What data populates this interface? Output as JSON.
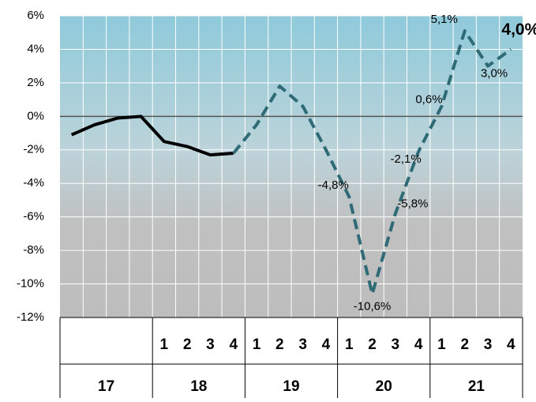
{
  "chart_data": {
    "type": "line",
    "categories": [
      null,
      null,
      null,
      null,
      "1",
      "2",
      "3",
      "4",
      "1",
      "2",
      "3",
      "4",
      "1",
      "2",
      "3",
      "4",
      "1",
      "2",
      "3",
      "4"
    ],
    "years": [
      "17",
      "18",
      "19",
      "20",
      "21"
    ],
    "series": [
      {
        "color": "#000000",
        "dashed": false,
        "values": [
          -1.1,
          -0.5,
          -0.1,
          0.0,
          -1.5,
          -1.8,
          -2.3,
          -2.2,
          null,
          null,
          null,
          null,
          null,
          null,
          null,
          null,
          null,
          null,
          null,
          null
        ]
      },
      {
        "color": "#2e6b76",
        "dashed": true,
        "values": [
          null,
          null,
          null,
          null,
          null,
          null,
          null,
          -2.2,
          -0.5,
          1.8,
          0.6,
          -2.0,
          -4.8,
          -10.6,
          -5.8,
          -2.1,
          0.6,
          5.1,
          3.0,
          4.0
        ],
        "value_labels": [
          null,
          null,
          null,
          null,
          null,
          null,
          null,
          null,
          null,
          null,
          null,
          null,
          "-4,8%",
          "-10,6%",
          "-5,8%",
          "-2,1%",
          "0,6%",
          "5,1%",
          "3,0%",
          "4,0%"
        ]
      }
    ],
    "ylim": [
      -12,
      6
    ],
    "yticks": [
      {
        "value": -12,
        "label": "-12%"
      },
      {
        "value": -10,
        "label": "-10%"
      },
      {
        "value": -8,
        "label": "-8%"
      },
      {
        "value": -6,
        "label": "-6%"
      },
      {
        "value": -4,
        "label": "-4%"
      },
      {
        "value": -2,
        "label": "-2%"
      },
      {
        "value": 0,
        "label": "0%"
      },
      {
        "value": 2,
        "label": "2%"
      },
      {
        "value": 4,
        "label": "4%"
      },
      {
        "value": 6,
        "label": "6%"
      }
    ],
    "grid": true
  }
}
